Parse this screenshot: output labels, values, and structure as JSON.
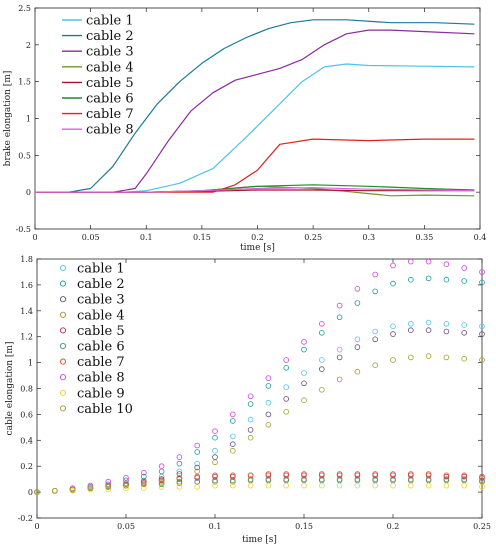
{
  "chart_data": [
    {
      "type": "line",
      "xlabel": "time [s]",
      "ylabel": "brake elongation [m]",
      "xlim": [
        0,
        0.4
      ],
      "ylim": [
        -0.5,
        2.5
      ],
      "xticks": [
        0,
        0.05,
        0.1,
        0.15,
        0.2,
        0.25,
        0.3,
        0.35,
        0.4
      ],
      "xtick_labels": [
        "0",
        "0.05",
        "0.1",
        "0.15",
        "0.2",
        "0.25",
        "0.3",
        "0.35",
        "0.4"
      ],
      "yticks": [
        -0.5,
        0,
        0.5,
        1,
        1.5,
        2,
        2.5
      ],
      "ytick_labels": [
        "-0.5",
        "0",
        "0.5",
        "1",
        "1.5",
        "2",
        "2.5"
      ],
      "grid": false,
      "legend_position": "top-left",
      "series": [
        {
          "name": "cable 1",
          "color": "#4fc3e6",
          "x": [
            0,
            0.05,
            0.08,
            0.1,
            0.13,
            0.16,
            0.19,
            0.22,
            0.24,
            0.26,
            0.28,
            0.3,
            0.35,
            0.395
          ],
          "y": [
            0,
            0,
            0,
            0.02,
            0.12,
            0.32,
            0.75,
            1.2,
            1.5,
            1.7,
            1.74,
            1.72,
            1.71,
            1.7
          ]
        },
        {
          "name": "cable 2",
          "color": "#1a7a96",
          "x": [
            0,
            0.03,
            0.05,
            0.07,
            0.09,
            0.11,
            0.13,
            0.15,
            0.17,
            0.19,
            0.21,
            0.23,
            0.25,
            0.28,
            0.32,
            0.36,
            0.395
          ],
          "y": [
            0,
            0,
            0.05,
            0.35,
            0.8,
            1.2,
            1.5,
            1.75,
            1.95,
            2.1,
            2.22,
            2.3,
            2.34,
            2.34,
            2.3,
            2.3,
            2.28
          ]
        },
        {
          "name": "cable 3",
          "color": "#8a2aa0",
          "x": [
            0,
            0.07,
            0.09,
            0.1,
            0.12,
            0.14,
            0.16,
            0.18,
            0.2,
            0.22,
            0.24,
            0.26,
            0.28,
            0.3,
            0.32,
            0.35,
            0.395
          ],
          "y": [
            0,
            0,
            0.05,
            0.25,
            0.7,
            1.1,
            1.35,
            1.52,
            1.6,
            1.68,
            1.8,
            2.0,
            2.15,
            2.2,
            2.2,
            2.18,
            2.15
          ]
        },
        {
          "name": "cable 4",
          "color": "#6a9a2a",
          "x": [
            0,
            0.1,
            0.15,
            0.2,
            0.25,
            0.28,
            0.3,
            0.32,
            0.35,
            0.395
          ],
          "y": [
            0,
            0,
            0.02,
            0.08,
            0.05,
            0.01,
            -0.02,
            -0.05,
            -0.04,
            -0.05
          ]
        },
        {
          "name": "cable 5",
          "color": "#b01030",
          "x": [
            0,
            0.1,
            0.15,
            0.2,
            0.25,
            0.3,
            0.35,
            0.395
          ],
          "y": [
            0,
            0,
            0.01,
            0.03,
            0.03,
            0.02,
            0.02,
            0.02
          ]
        },
        {
          "name": "cable 6",
          "color": "#1f8a2a",
          "x": [
            0,
            0.1,
            0.15,
            0.2,
            0.25,
            0.3,
            0.35,
            0.395
          ],
          "y": [
            0,
            0,
            0.02,
            0.08,
            0.1,
            0.08,
            0.05,
            0.03
          ]
        },
        {
          "name": "cable 7",
          "color": "#e02020",
          "x": [
            0,
            0.16,
            0.18,
            0.2,
            0.22,
            0.25,
            0.3,
            0.35,
            0.395
          ],
          "y": [
            0,
            0,
            0.1,
            0.3,
            0.65,
            0.72,
            0.7,
            0.72,
            0.72
          ]
        },
        {
          "name": "cable 8",
          "color": "#e060e0",
          "x": [
            0,
            0.1,
            0.15,
            0.2,
            0.25,
            0.3,
            0.35,
            0.395
          ],
          "y": [
            0,
            0,
            0.02,
            0.05,
            0.06,
            0.04,
            0.03,
            0.02
          ]
        }
      ]
    },
    {
      "type": "scatter",
      "xlabel": "time [s]",
      "ylabel": "cable elongation [m]",
      "xlim": [
        0,
        0.25
      ],
      "ylim": [
        -0.2,
        1.8
      ],
      "xticks": [
        0,
        0.05,
        0.1,
        0.15,
        0.2,
        0.25
      ],
      "xtick_labels": [
        "0",
        "0.05",
        "0.1",
        "0.15",
        "0.2",
        "0.25"
      ],
      "yticks": [
        -0.2,
        0,
        0.2,
        0.4,
        0.6,
        0.8,
        1,
        1.2,
        1.4,
        1.6,
        1.8
      ],
      "ytick_labels": [
        "-0.2",
        "0",
        "0.2",
        "0.4",
        "0.6",
        "0.8",
        "1",
        "1.2",
        "1.4",
        "1.6",
        "1.8"
      ],
      "grid": false,
      "legend_position": "top-left",
      "x": [
        0,
        0.01,
        0.02,
        0.03,
        0.04,
        0.05,
        0.06,
        0.07,
        0.08,
        0.09,
        0.1,
        0.11,
        0.12,
        0.13,
        0.14,
        0.15,
        0.16,
        0.17,
        0.18,
        0.19,
        0.2,
        0.21,
        0.22,
        0.23,
        0.24,
        0.25
      ],
      "series": [
        {
          "name": "cable 1",
          "color": "#4fc3e6",
          "y": [
            0,
            0.01,
            0.02,
            0.03,
            0.05,
            0.07,
            0.09,
            0.12,
            0.16,
            0.22,
            0.32,
            0.43,
            0.56,
            0.69,
            0.81,
            0.92,
            1.02,
            1.1,
            1.18,
            1.24,
            1.28,
            1.3,
            1.31,
            1.3,
            1.29,
            1.28
          ]
        },
        {
          "name": "cable 2",
          "color": "#1a9a9a",
          "y": [
            0,
            0.01,
            0.02,
            0.04,
            0.06,
            0.09,
            0.12,
            0.16,
            0.22,
            0.31,
            0.42,
            0.55,
            0.68,
            0.82,
            0.96,
            1.1,
            1.23,
            1.35,
            1.46,
            1.55,
            1.61,
            1.64,
            1.65,
            1.64,
            1.63,
            1.62
          ]
        },
        {
          "name": "cable 3",
          "color": "#6a4a7a",
          "y": [
            0,
            0.01,
            0.02,
            0.03,
            0.04,
            0.06,
            0.08,
            0.1,
            0.14,
            0.19,
            0.27,
            0.37,
            0.48,
            0.6,
            0.72,
            0.84,
            0.95,
            1.04,
            1.12,
            1.18,
            1.22,
            1.25,
            1.25,
            1.24,
            1.23,
            1.22
          ]
        },
        {
          "name": "cable 4",
          "color": "#b08a2a",
          "y": [
            0,
            0.01,
            0.02,
            0.03,
            0.04,
            0.05,
            0.06,
            0.07,
            0.08,
            0.08,
            0.09,
            0.09,
            0.1,
            0.1,
            0.1,
            0.1,
            0.1,
            0.1,
            0.1,
            0.1,
            0.1,
            0.1,
            0.1,
            0.1,
            0.1,
            0.09
          ]
        },
        {
          "name": "cable 5",
          "color": "#b0305a",
          "y": [
            0,
            0.01,
            0.02,
            0.03,
            0.04,
            0.06,
            0.07,
            0.09,
            0.1,
            0.11,
            0.12,
            0.12,
            0.13,
            0.13,
            0.13,
            0.13,
            0.13,
            0.13,
            0.13,
            0.13,
            0.13,
            0.13,
            0.13,
            0.12,
            0.12,
            0.11
          ]
        },
        {
          "name": "cable 6",
          "color": "#3a8a8a",
          "y": [
            0,
            0.01,
            0.02,
            0.03,
            0.04,
            0.05,
            0.06,
            0.06,
            0.07,
            0.08,
            0.08,
            0.08,
            0.09,
            0.09,
            0.09,
            0.09,
            0.09,
            0.09,
            0.09,
            0.09,
            0.09,
            0.09,
            0.09,
            0.09,
            0.09,
            0.08
          ]
        },
        {
          "name": "cable 7",
          "color": "#e04a2a",
          "y": [
            0,
            0.01,
            0.02,
            0.03,
            0.05,
            0.06,
            0.08,
            0.09,
            0.11,
            0.12,
            0.13,
            0.13,
            0.13,
            0.14,
            0.14,
            0.14,
            0.14,
            0.14,
            0.14,
            0.14,
            0.14,
            0.14,
            0.14,
            0.13,
            0.13,
            0.12
          ]
        },
        {
          "name": "cable 8",
          "color": "#d040e0",
          "y": [
            0,
            0.01,
            0.03,
            0.05,
            0.08,
            0.11,
            0.15,
            0.2,
            0.27,
            0.36,
            0.47,
            0.6,
            0.74,
            0.88,
            1.02,
            1.16,
            1.3,
            1.44,
            1.57,
            1.68,
            1.75,
            1.78,
            1.78,
            1.76,
            1.73,
            1.7
          ]
        },
        {
          "name": "cable 9",
          "color": "#f0d020",
          "y": [
            0,
            0.01,
            0.01,
            0.02,
            0.02,
            0.03,
            0.03,
            0.04,
            0.04,
            0.04,
            0.05,
            0.05,
            0.05,
            0.05,
            0.05,
            0.05,
            0.05,
            0.05,
            0.05,
            0.05,
            0.05,
            0.05,
            0.05,
            0.05,
            0.05,
            0.04
          ]
        },
        {
          "name": "cable 10",
          "color": "#a0a02a",
          "y": [
            0,
            0.01,
            0.02,
            0.03,
            0.04,
            0.05,
            0.06,
            0.08,
            0.11,
            0.16,
            0.23,
            0.32,
            0.42,
            0.52,
            0.62,
            0.71,
            0.79,
            0.87,
            0.93,
            0.98,
            1.02,
            1.04,
            1.05,
            1.04,
            1.03,
            1.02
          ]
        }
      ]
    }
  ]
}
